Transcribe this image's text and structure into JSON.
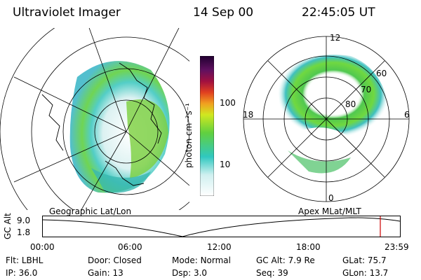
{
  "header": {
    "instrument": "Ultraviolet Imager",
    "date": "14 Sep 00",
    "time": "22:45:05 UT"
  },
  "left_panel": {
    "caption": "Geographic Lat/Lon"
  },
  "right_panel": {
    "caption": "Apex MLat/MLT",
    "mlt_labels": [
      "12",
      "18",
      "6",
      "0"
    ],
    "mlat_labels": [
      "60",
      "70",
      "80"
    ]
  },
  "colorbar": {
    "unit_label": "photon cm⁻²s⁻¹",
    "ticks": [
      "100",
      "10"
    ]
  },
  "altitude_plot": {
    "ylabel": "GC Alt",
    "yticks": [
      "9.0",
      "1.8"
    ],
    "xticks": [
      "00:00",
      "06:00",
      "12:00",
      "18:00",
      "23:59"
    ]
  },
  "info": {
    "row1": [
      {
        "label": "Flt:",
        "value": "LBHL"
      },
      {
        "label": "Door:",
        "value": "Closed"
      },
      {
        "label": "Mode:",
        "value": "Normal"
      },
      {
        "label": "GC Alt:",
        "value": "7.9 Re"
      },
      {
        "label": "GLat:",
        "value": "75.7"
      }
    ],
    "row2": [
      {
        "label": "IP:",
        "value": "36.0"
      },
      {
        "label": "Gain:",
        "value": "13"
      },
      {
        "label": "Dsp:",
        "value": "3.0"
      },
      {
        "label": "Seq:",
        "value": "39"
      },
      {
        "label": "GLon:",
        "value": "13.7"
      }
    ]
  }
}
